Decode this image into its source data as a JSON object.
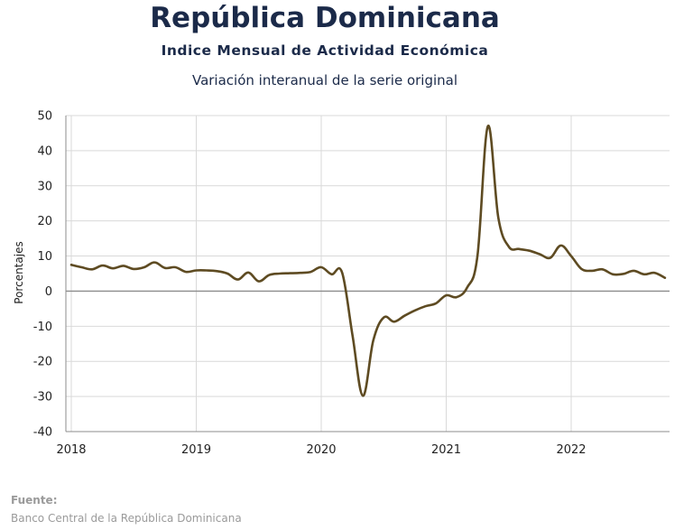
{
  "chart_data": {
    "type": "line",
    "title": "República Dominicana",
    "subtitle": "Indice Mensual de  Actividad Económica",
    "subtitle2": "Variación interanual de la serie original",
    "ylabel": "Porcentajes",
    "xlabel": "",
    "ylim": [
      -40,
      50
    ],
    "yticks": [
      50,
      40,
      30,
      20,
      10,
      0,
      -10,
      -20,
      -30,
      -40
    ],
    "negative_tick_color": "#d62b2b",
    "xtick_labels": [
      "2018",
      "2019",
      "2020",
      "2021",
      "2022"
    ],
    "grid": true,
    "line_color": "#5e4b22",
    "series": [
      {
        "name": "",
        "x": [
          "2018-01",
          "2018-02",
          "2018-03",
          "2018-04",
          "2018-05",
          "2018-06",
          "2018-07",
          "2018-08",
          "2018-09",
          "2018-10",
          "2018-11",
          "2018-12",
          "2019-01",
          "2019-02",
          "2019-03",
          "2019-04",
          "2019-05",
          "2019-06",
          "2019-07",
          "2019-08",
          "2019-09",
          "2019-10",
          "2019-11",
          "2019-12",
          "2020-01",
          "2020-02",
          "2020-03",
          "2020-04",
          "2020-05",
          "2020-06",
          "2020-07",
          "2020-08",
          "2020-09",
          "2020-10",
          "2020-11",
          "2020-12",
          "2021-01",
          "2021-02",
          "2021-03",
          "2021-04",
          "2021-05",
          "2021-06",
          "2021-07",
          "2021-08",
          "2021-09",
          "2021-10",
          "2021-11",
          "2021-12",
          "2022-01",
          "2022-02",
          "2022-03",
          "2022-04",
          "2022-05",
          "2022-06",
          "2022-07",
          "2022-08",
          "2022-09",
          "2022-10"
        ],
        "values": [
          7.5,
          6.8,
          6.2,
          7.3,
          6.5,
          7.2,
          6.3,
          6.8,
          8.2,
          6.6,
          6.8,
          5.5,
          5.9,
          5.9,
          5.7,
          5.0,
          3.3,
          5.3,
          2.8,
          4.6,
          5.0,
          5.1,
          5.2,
          5.5,
          6.8,
          4.8,
          5.3,
          -12.5,
          -29.8,
          -14.0,
          -7.5,
          -8.7,
          -7.0,
          -5.5,
          -4.3,
          -3.5,
          -1.2,
          -1.7,
          1.0,
          10.0,
          47.0,
          21.0,
          12.7,
          12.0,
          11.5,
          10.5,
          9.5,
          13.0,
          10.0,
          6.3,
          5.8,
          6.2,
          4.8,
          4.9,
          5.8,
          4.8,
          5.2,
          3.8
        ]
      }
    ]
  },
  "source": {
    "label": "Fuente:",
    "text": "Banco Central de la República Dominicana"
  }
}
